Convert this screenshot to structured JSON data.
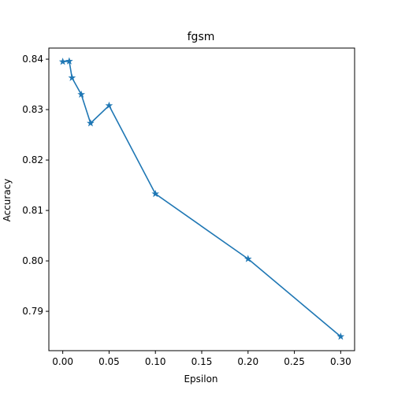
{
  "chart_data": {
    "type": "line",
    "title": "fgsm",
    "xlabel": "Epsilon",
    "ylabel": "Accuracy",
    "xlim": [
      -0.015,
      0.315
    ],
    "ylim": [
      0.7822,
      0.8422
    ],
    "x_ticks": [
      0.0,
      0.05,
      0.1,
      0.15,
      0.2,
      0.25,
      0.3
    ],
    "x_tick_labels": [
      "0.00",
      "0.05",
      "0.10",
      "0.15",
      "0.20",
      "0.25",
      "0.30"
    ],
    "y_ticks": [
      0.79,
      0.8,
      0.81,
      0.82,
      0.83,
      0.84
    ],
    "y_tick_labels": [
      "0.79",
      "0.80",
      "0.81",
      "0.82",
      "0.83",
      "0.84"
    ],
    "grid": false,
    "marker": "star",
    "series": [
      {
        "color": "#1f77b4",
        "x": [
          0.0,
          0.007,
          0.01,
          0.02,
          0.03,
          0.05,
          0.1,
          0.2,
          0.3
        ],
        "y": [
          0.8395,
          0.8396,
          0.8363,
          0.833,
          0.8273,
          0.8308,
          0.8133,
          0.8004,
          0.785
        ]
      }
    ]
  }
}
